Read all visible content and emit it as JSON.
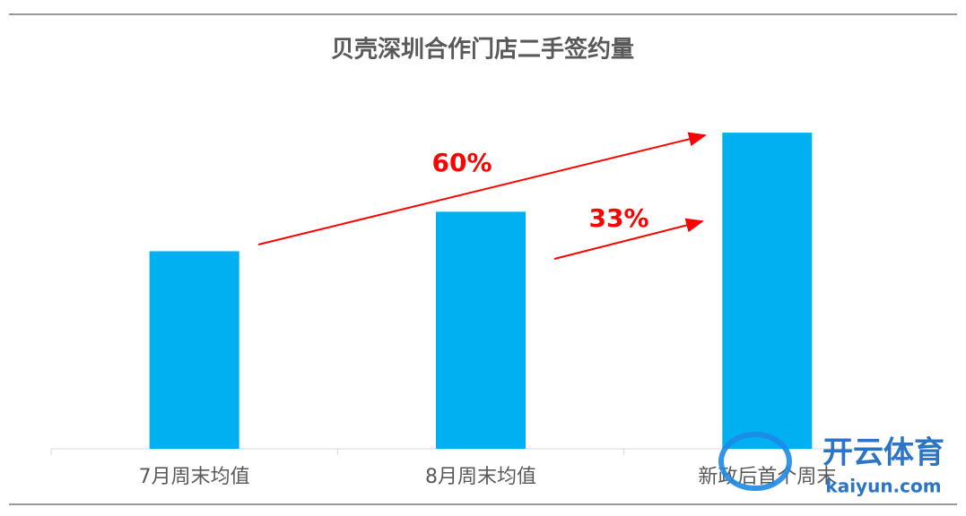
{
  "chart_data": {
    "type": "bar",
    "title": "贝壳深圳合作门店二手签约量",
    "categories": [
      "7月周末均值",
      "8月周末均值",
      "新政后首个周末"
    ],
    "values": [
      100,
      120,
      160
    ],
    "color": "#00b0f0",
    "ylim": [
      0,
      180
    ],
    "annotations": [
      "60%",
      "33%"
    ]
  },
  "watermark": {
    "brand": "开云体育",
    "site": "kaiyun.com"
  }
}
